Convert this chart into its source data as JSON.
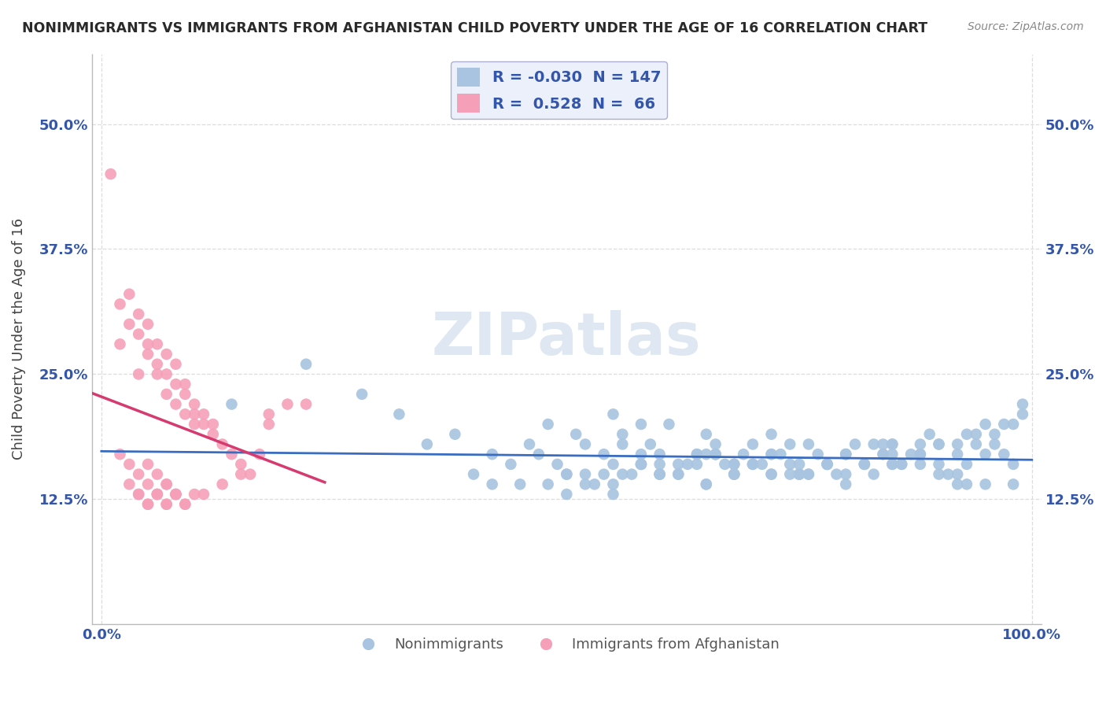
{
  "title": "NONIMMIGRANTS VS IMMIGRANTS FROM AFGHANISTAN CHILD POVERTY UNDER THE AGE OF 16 CORRELATION CHART",
  "source": "Source: ZipAtlas.com",
  "ylabel": "Child Poverty Under the Age of 16",
  "xlim": [
    -1,
    101
  ],
  "ylim": [
    0,
    57
  ],
  "ytick_values": [
    12.5,
    25.0,
    37.5,
    50.0
  ],
  "blue_R": "-0.030",
  "blue_N": "147",
  "pink_R": "0.528",
  "pink_N": "66",
  "blue_color": "#a8c4e0",
  "pink_color": "#f5a0b8",
  "blue_line_color": "#3a6cbf",
  "pink_line_color": "#d63a6e",
  "legend_box_color": "#eaf0fa",
  "watermark_color": "#c5d5ea",
  "background_color": "#ffffff",
  "grid_color": "#dddddd",
  "title_color": "#2a2a2a",
  "label_color": "#3355aa",
  "axis_label_color": "#444444",
  "blue_scatter_x": [
    14,
    22,
    28,
    32,
    35,
    38,
    40,
    42,
    44,
    46,
    47,
    48,
    49,
    50,
    51,
    52,
    53,
    54,
    55,
    56,
    57,
    58,
    59,
    60,
    61,
    62,
    63,
    64,
    65,
    66,
    67,
    68,
    69,
    70,
    71,
    72,
    73,
    74,
    75,
    76,
    77,
    78,
    79,
    80,
    81,
    82,
    83,
    84,
    85,
    86,
    87,
    88,
    89,
    90,
    91,
    92,
    93,
    94,
    95,
    96,
    97,
    98,
    99,
    42,
    55,
    60,
    65,
    70,
    75,
    80,
    85,
    90,
    95,
    50,
    55,
    60,
    65,
    70,
    75,
    80,
    85,
    90,
    56,
    58,
    62,
    66,
    72,
    78,
    83,
    88,
    93,
    98,
    45,
    52,
    58,
    64,
    68,
    74,
    80,
    86,
    92,
    97,
    54,
    60,
    66,
    72,
    78,
    84,
    88,
    94,
    99,
    48,
    56,
    64,
    72,
    80,
    88,
    96,
    52,
    60,
    68,
    76,
    84,
    92,
    58,
    66,
    74,
    82,
    90,
    98,
    50,
    58,
    68,
    76,
    85,
    93,
    55,
    65,
    75,
    85,
    95,
    62,
    72,
    82,
    92,
    68,
    78
  ],
  "blue_scatter_y": [
    22,
    26,
    23,
    21,
    18,
    19,
    15,
    17,
    16,
    18,
    17,
    20,
    16,
    15,
    19,
    18,
    14,
    17,
    21,
    19,
    15,
    16,
    18,
    17,
    20,
    15,
    16,
    17,
    19,
    18,
    16,
    15,
    17,
    18,
    16,
    19,
    17,
    15,
    16,
    18,
    17,
    16,
    15,
    17,
    18,
    16,
    15,
    17,
    18,
    16,
    17,
    18,
    19,
    16,
    15,
    17,
    16,
    18,
    20,
    19,
    17,
    16,
    22,
    14,
    13,
    15,
    14,
    16,
    15,
    17,
    16,
    18,
    17,
    13,
    14,
    15,
    14,
    16,
    15,
    14,
    16,
    15,
    18,
    20,
    16,
    17,
    15,
    16,
    18,
    17,
    19,
    20,
    14,
    15,
    16,
    17,
    15,
    16,
    17,
    16,
    18,
    20,
    15,
    16,
    17,
    15,
    16,
    18,
    17,
    19,
    21,
    14,
    15,
    16,
    17,
    15,
    16,
    18,
    14,
    15,
    16,
    15,
    17,
    15,
    16,
    17,
    18,
    16,
    18,
    14,
    15,
    17,
    16,
    15,
    17,
    14,
    16,
    17,
    15,
    18,
    14,
    15,
    17,
    16,
    14,
    15,
    16
  ],
  "pink_scatter_x": [
    1,
    2,
    2,
    3,
    3,
    4,
    4,
    4,
    5,
    5,
    5,
    6,
    6,
    6,
    7,
    7,
    7,
    8,
    8,
    8,
    9,
    9,
    9,
    10,
    10,
    10,
    11,
    11,
    12,
    12,
    13,
    14,
    15,
    16,
    17,
    18,
    20,
    22,
    2,
    3,
    4,
    5,
    6,
    7,
    3,
    4,
    5,
    6,
    7,
    8,
    4,
    5,
    6,
    7,
    8,
    9,
    5,
    6,
    7,
    8,
    9,
    10,
    11,
    13,
    15,
    18
  ],
  "pink_scatter_y": [
    45,
    32,
    28,
    30,
    33,
    25,
    29,
    31,
    27,
    30,
    28,
    25,
    26,
    28,
    23,
    25,
    27,
    22,
    24,
    26,
    21,
    23,
    24,
    20,
    21,
    22,
    20,
    21,
    19,
    20,
    18,
    17,
    16,
    15,
    17,
    20,
    22,
    22,
    17,
    16,
    15,
    16,
    15,
    14,
    14,
    13,
    14,
    13,
    14,
    13,
    13,
    12,
    13,
    12,
    13,
    12,
    12,
    13,
    12,
    13,
    12,
    13,
    13,
    14,
    15,
    21
  ]
}
